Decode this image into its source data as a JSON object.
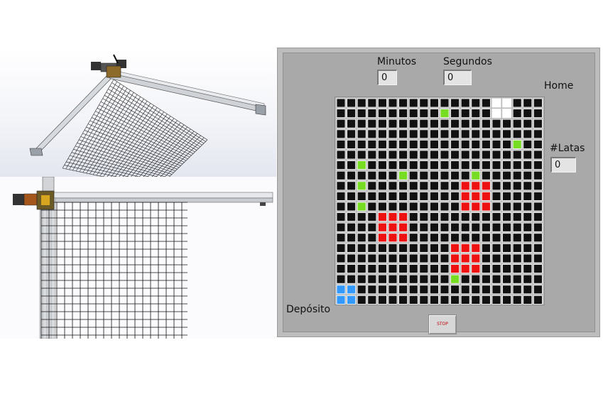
{
  "panel": {
    "minutos_label": "Minutos",
    "minutos_value": "0",
    "segundos_label": "Segundos",
    "segundos_value": "0",
    "home_label": "Home",
    "latas_label": "#Latas",
    "latas_value": "0",
    "deposito_label": "Depósito",
    "stop_label": "STOP"
  },
  "grid": {
    "rows": 20,
    "cols": 20,
    "colors": {
      "empty": "#111111",
      "can": "#77dd22",
      "obstacle": "#ee1111",
      "home": "#ffffff",
      "deposit": "#3399ff",
      "cell_border": "#ffffff"
    },
    "home_cells": [
      [
        0,
        15
      ],
      [
        0,
        16
      ],
      [
        1,
        15
      ],
      [
        1,
        16
      ]
    ],
    "deposit_cells": [
      [
        18,
        0
      ],
      [
        18,
        1
      ],
      [
        19,
        0
      ],
      [
        19,
        1
      ]
    ],
    "can_cells": [
      [
        1,
        10
      ],
      [
        4,
        17
      ],
      [
        6,
        2
      ],
      [
        7,
        6
      ],
      [
        7,
        13
      ],
      [
        8,
        2
      ],
      [
        10,
        2
      ],
      [
        17,
        11
      ]
    ],
    "obstacle_cells": [
      [
        8,
        12
      ],
      [
        8,
        13
      ],
      [
        8,
        14
      ],
      [
        9,
        12
      ],
      [
        9,
        13
      ],
      [
        9,
        14
      ],
      [
        10,
        12
      ],
      [
        10,
        13
      ],
      [
        10,
        14
      ],
      [
        11,
        4
      ],
      [
        11,
        5
      ],
      [
        11,
        6
      ],
      [
        12,
        4
      ],
      [
        12,
        5
      ],
      [
        12,
        6
      ],
      [
        13,
        4
      ],
      [
        13,
        5
      ],
      [
        13,
        6
      ],
      [
        14,
        11
      ],
      [
        14,
        12
      ],
      [
        14,
        13
      ],
      [
        15,
        11
      ],
      [
        15,
        12
      ],
      [
        15,
        13
      ],
      [
        16,
        11
      ],
      [
        16,
        12
      ],
      [
        16,
        13
      ]
    ]
  }
}
